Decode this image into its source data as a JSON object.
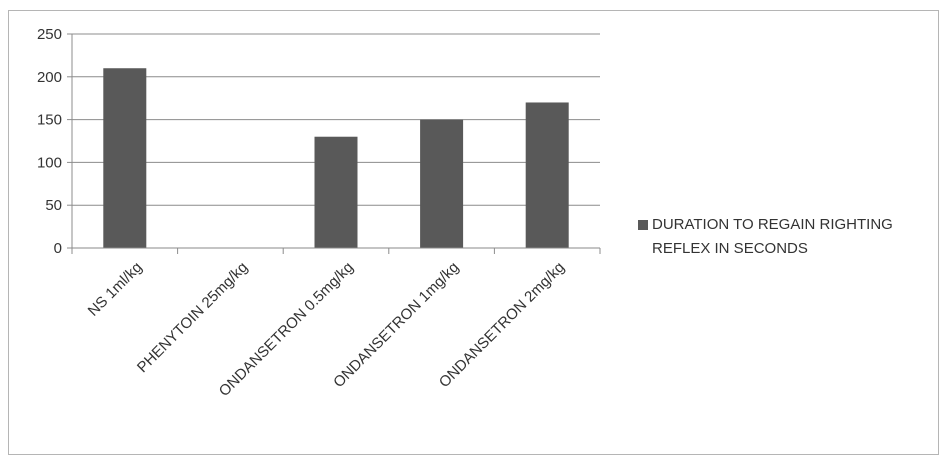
{
  "chart_data": {
    "type": "bar",
    "categories": [
      "NS 1ml/kg",
      "PHENYTOIN 25mg/kg",
      "ONDANSETRON 0.5mg/kg",
      "ONDANSETRON 1mg/kg",
      "ONDANSETRON 2mg/kg"
    ],
    "series": [
      {
        "name": "DURATION TO REGAIN RIGHTING REFLEX IN SECONDS",
        "values": [
          210,
          0,
          130,
          150,
          170
        ],
        "color": "#595959"
      }
    ],
    "ylim": [
      0,
      250
    ],
    "yticks": [
      0,
      50,
      100,
      150,
      200,
      250
    ],
    "grid": true,
    "legend": "right",
    "title": "",
    "xlabel": "",
    "ylabel": ""
  }
}
